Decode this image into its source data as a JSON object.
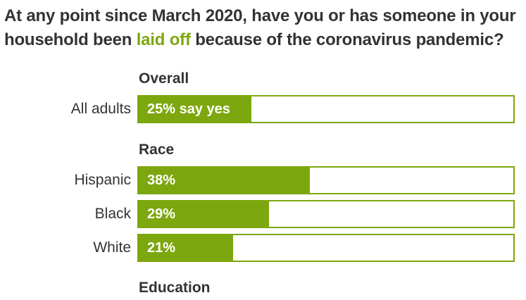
{
  "title": {
    "before": "At any point since March 2020, have you or has someone in your household been ",
    "highlight": "laid off",
    "after": " because of the coronavirus pandemic?"
  },
  "colors": {
    "accent": "#7da70e",
    "text": "#333333"
  },
  "chart_data": {
    "type": "bar",
    "orientation": "horizontal",
    "xlim": [
      0,
      100
    ],
    "groups": [
      {
        "name": "Overall",
        "rows": [
          {
            "label": "All adults",
            "value": 25,
            "display": "25% say yes"
          }
        ]
      },
      {
        "name": "Race",
        "rows": [
          {
            "label": "Hispanic",
            "value": 38,
            "display": "38%"
          },
          {
            "label": "Black",
            "value": 29,
            "display": "29%"
          },
          {
            "label": "White",
            "value": 21,
            "display": "21%"
          }
        ]
      },
      {
        "name": "Education",
        "rows": []
      }
    ]
  }
}
